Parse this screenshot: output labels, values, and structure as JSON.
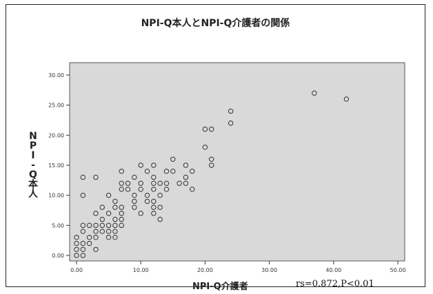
{
  "chart_data": {
    "type": "scatter",
    "title": "NPI-Q本人とNPI-Q介護者の関係",
    "xlabel": "NPI-Q介護者",
    "ylabel": "NPI-Q本人",
    "annotation": "rs=0.872,P<0.01",
    "xlim": [
      0,
      50
    ],
    "ylim": [
      0,
      30
    ],
    "x_ticks": [
      "0.00",
      "10.00",
      "20.00",
      "30.00",
      "40.00",
      "50.00"
    ],
    "y_ticks": [
      "0.00",
      "5.00",
      "10.00",
      "15.00",
      "20.00",
      "25.00",
      "30.00"
    ],
    "grid": false,
    "plot_background": "#d9d9d9",
    "marker": "hollow-circle",
    "points": [
      {
        "x": 0,
        "y": 0
      },
      {
        "x": 0,
        "y": 1
      },
      {
        "x": 0,
        "y": 2
      },
      {
        "x": 0,
        "y": 3
      },
      {
        "x": 1,
        "y": 0
      },
      {
        "x": 1,
        "y": 1
      },
      {
        "x": 1,
        "y": 2
      },
      {
        "x": 1,
        "y": 4
      },
      {
        "x": 1,
        "y": 5
      },
      {
        "x": 1,
        "y": 10
      },
      {
        "x": 1,
        "y": 13
      },
      {
        "x": 2,
        "y": 2
      },
      {
        "x": 2,
        "y": 3
      },
      {
        "x": 2,
        "y": 5
      },
      {
        "x": 3,
        "y": 1
      },
      {
        "x": 3,
        "y": 3
      },
      {
        "x": 3,
        "y": 4
      },
      {
        "x": 3,
        "y": 5
      },
      {
        "x": 3,
        "y": 7
      },
      {
        "x": 3,
        "y": 13
      },
      {
        "x": 4,
        "y": 4
      },
      {
        "x": 4,
        "y": 5
      },
      {
        "x": 4,
        "y": 6
      },
      {
        "x": 4,
        "y": 8
      },
      {
        "x": 5,
        "y": 3
      },
      {
        "x": 5,
        "y": 4
      },
      {
        "x": 5,
        "y": 5
      },
      {
        "x": 5,
        "y": 7
      },
      {
        "x": 5,
        "y": 10
      },
      {
        "x": 6,
        "y": 3
      },
      {
        "x": 6,
        "y": 4
      },
      {
        "x": 6,
        "y": 5
      },
      {
        "x": 6,
        "y": 6
      },
      {
        "x": 6,
        "y": 8
      },
      {
        "x": 6,
        "y": 9
      },
      {
        "x": 7,
        "y": 5
      },
      {
        "x": 7,
        "y": 6
      },
      {
        "x": 7,
        "y": 7
      },
      {
        "x": 7,
        "y": 8
      },
      {
        "x": 7,
        "y": 11
      },
      {
        "x": 7,
        "y": 12
      },
      {
        "x": 7,
        "y": 14
      },
      {
        "x": 8,
        "y": 11
      },
      {
        "x": 8,
        "y": 12
      },
      {
        "x": 9,
        "y": 8
      },
      {
        "x": 9,
        "y": 9
      },
      {
        "x": 9,
        "y": 10
      },
      {
        "x": 9,
        "y": 13
      },
      {
        "x": 10,
        "y": 7
      },
      {
        "x": 10,
        "y": 11
      },
      {
        "x": 10,
        "y": 12
      },
      {
        "x": 10,
        "y": 15
      },
      {
        "x": 11,
        "y": 9
      },
      {
        "x": 11,
        "y": 10
      },
      {
        "x": 11,
        "y": 14
      },
      {
        "x": 12,
        "y": 7
      },
      {
        "x": 12,
        "y": 8
      },
      {
        "x": 12,
        "y": 9
      },
      {
        "x": 12,
        "y": 11
      },
      {
        "x": 12,
        "y": 12
      },
      {
        "x": 12,
        "y": 13
      },
      {
        "x": 12,
        "y": 15
      },
      {
        "x": 13,
        "y": 6
      },
      {
        "x": 13,
        "y": 8
      },
      {
        "x": 13,
        "y": 10
      },
      {
        "x": 13,
        "y": 12
      },
      {
        "x": 14,
        "y": 11
      },
      {
        "x": 14,
        "y": 12
      },
      {
        "x": 14,
        "y": 14
      },
      {
        "x": 15,
        "y": 14
      },
      {
        "x": 15,
        "y": 16
      },
      {
        "x": 16,
        "y": 12
      },
      {
        "x": 17,
        "y": 12
      },
      {
        "x": 17,
        "y": 13
      },
      {
        "x": 17,
        "y": 15
      },
      {
        "x": 18,
        "y": 11
      },
      {
        "x": 18,
        "y": 14
      },
      {
        "x": 20,
        "y": 18
      },
      {
        "x": 20,
        "y": 21
      },
      {
        "x": 21,
        "y": 15
      },
      {
        "x": 21,
        "y": 16
      },
      {
        "x": 21,
        "y": 21
      },
      {
        "x": 24,
        "y": 22
      },
      {
        "x": 24,
        "y": 24
      },
      {
        "x": 37,
        "y": 27
      },
      {
        "x": 42,
        "y": 26
      }
    ]
  }
}
